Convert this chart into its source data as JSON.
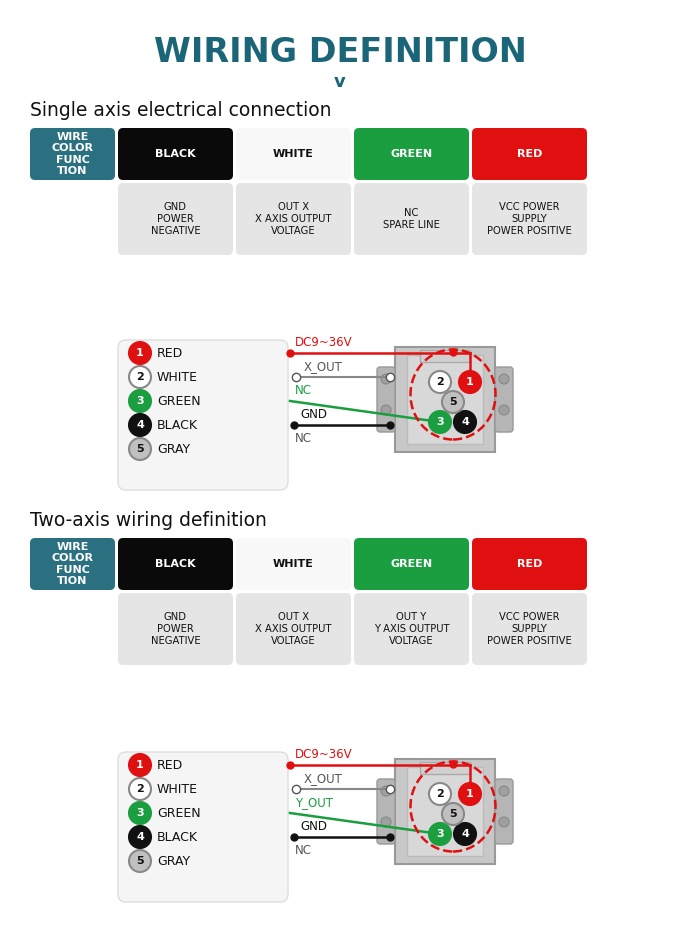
{
  "title": "WIRING DEFINITION",
  "title_color": "#1a6578",
  "bg_color": "#ffffff",
  "section1_title": "Single axis electrical connection",
  "section2_title": "Two-axis wiring definition",
  "teal_color": "#1a6578",
  "table1": {
    "col_headers": [
      "WIRE\nCOLOR\nFUNC\nTION",
      "BLACK",
      "WHITE",
      "GREEN",
      "RED"
    ],
    "col_bg": [
      "#2a7080",
      "#0a0a0a",
      "#f8f8f8",
      "#1a9e3f",
      "#e01010"
    ],
    "col_text": [
      "#ffffff",
      "#ffffff",
      "#111111",
      "#ffffff",
      "#ffffff"
    ],
    "row2": [
      "",
      "GND\nPOWER\nNEGATIVE",
      "OUT X\nX AXIS OUTPUT\nVOLTAGE",
      "NC\nSPARE LINE",
      "VCC POWER\nSUPPLY\nPOWER POSITIVE"
    ]
  },
  "table2": {
    "col_headers": [
      "WIRE\nCOLOR\nFUNC\nTION",
      "BLACK",
      "WHITE",
      "GREEN",
      "RED"
    ],
    "col_bg": [
      "#2a7080",
      "#0a0a0a",
      "#f8f8f8",
      "#1a9e3f",
      "#e01010"
    ],
    "col_text": [
      "#ffffff",
      "#ffffff",
      "#111111",
      "#ffffff",
      "#ffffff"
    ],
    "row2": [
      "",
      "GND\nPOWER\nNEGATIVE",
      "OUT X\nX AXIS OUTPUT\nVOLTAGE",
      "OUT Y\nY AXIS OUTPUT\nVOLTAGE",
      "VCC POWER\nSUPPLY\nPOWER POSITIVE"
    ]
  },
  "wire1_labels": [
    "RED",
    "WHITE",
    "GREEN",
    "BLACK",
    "GRAY"
  ],
  "wire1_signals": [
    "DC9~36V",
    "X_OUT",
    "NC",
    "GND",
    "NC"
  ],
  "wire2_labels": [
    "RED",
    "WHITE",
    "GREEN",
    "BLACK",
    "GRAY"
  ],
  "wire2_signals": [
    "DC9~36V",
    "X_OUT",
    "Y_OUT",
    "GND",
    "NC"
  ],
  "wire_circle_colors": [
    "#e01010",
    "#ffffff",
    "#1a9e3f",
    "#111111",
    "#c0c0c0"
  ],
  "pin_colors": {
    "1": "#e01010",
    "2": "#ffffff",
    "3": "#1a9e3f",
    "4": "#111111",
    "5": "#c0c0c0"
  }
}
